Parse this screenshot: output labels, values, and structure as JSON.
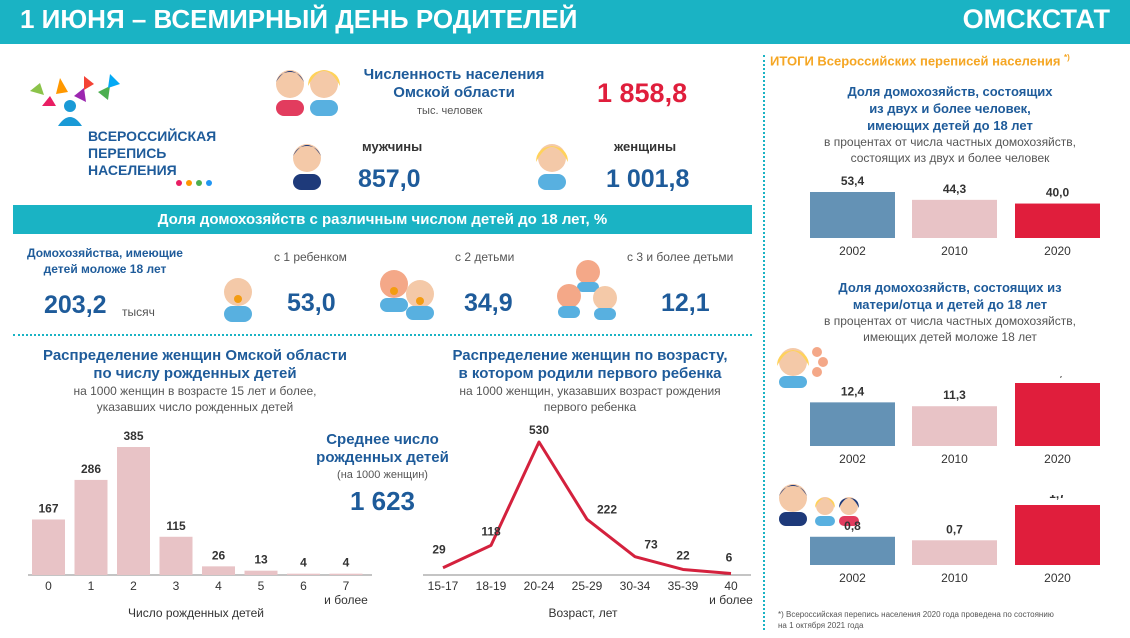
{
  "header": {
    "title": "1 ИЮНЯ – ВСЕМИРНЫЙ ДЕНЬ РОДИТЕЛЕЙ",
    "org": "ОМСКСТАТ"
  },
  "logo": {
    "line1": "ВСЕРОССИЙСКАЯ",
    "line2": "ПЕРЕПИСЬ",
    "line3": "НАСЕЛЕНИЯ"
  },
  "population": {
    "title_line1": "Численность населения",
    "title_line2": "Омской области",
    "unit": "тыс. человек",
    "total": "1 858,8",
    "men_label": "мужчины",
    "men_value": "857,0",
    "women_label": "женщины",
    "women_value": "1 001,8"
  },
  "households": {
    "band_title": "Доля домохозяйств с различным числом детей до 18 лет, %",
    "label_line1": "Домохозяйства, имеющие",
    "label_line2": "детей моложе 18 лет",
    "count": "203,2",
    "count_unit": "тысяч",
    "one_label": "с 1 ребенком",
    "one_value": "53,0",
    "two_label": "с 2 детьми",
    "two_value": "34,9",
    "three_label": "с 3 и более детьми",
    "three_value": "12,1"
  },
  "avg_children": {
    "line1": "Среднее число",
    "line2": "рожденных детей",
    "unit": "(на 1000 женщин)",
    "value": "1 623"
  },
  "right_panel": {
    "title": "ИТОГИ Всероссийских переписей населения",
    "title_mark": "*)",
    "footnote_line1": "*) Всероссийская перепись населения 2020 года проведена по состоянию",
    "footnote_line2": "на 1 октября 2021 года"
  },
  "colors": {
    "accent": "#1ab3c4",
    "blue_text": "#1e5b9a",
    "red": "#e01e3c",
    "pink": "#e8c3c6",
    "steel": "#6492b5"
  },
  "chart_data": [
    {
      "type": "bar",
      "title_line1": "Распределение женщин Омской области",
      "title_line2": "по числу рожденных детей",
      "subtitle_line1": "на 1000 женщин в возрасте 15 лет и более,",
      "subtitle_line2": "указавших число рожденных детей",
      "xlabel": "Число рожденных детей",
      "categories": [
        "0",
        "1",
        "2",
        "3",
        "4",
        "5",
        "6",
        "7 и более"
      ],
      "values": [
        167,
        286,
        385,
        115,
        26,
        13,
        4,
        4
      ],
      "value_labels": [
        "167",
        "286",
        "385",
        "115",
        "26",
        "13",
        "4",
        "4"
      ]
    },
    {
      "type": "line",
      "title_line1": "Распределение женщин по возрасту,",
      "title_line2": "в котором родили первого ребенка",
      "subtitle_line1": "на 1000 женщин, указавших возраст рождения",
      "subtitle_line2": "первого ребенка",
      "xlabel": "Возраст, лет",
      "categories": [
        "15-17",
        "18-19",
        "20-24",
        "25-29",
        "30-34",
        "35-39",
        "40 и более"
      ],
      "values": [
        29,
        118,
        530,
        222,
        73,
        22,
        6
      ],
      "value_labels": [
        "29",
        "118",
        "530",
        "222",
        "73",
        "22",
        "6"
      ]
    },
    {
      "type": "bar",
      "title_line1": "Доля домохозяйств, состоящих",
      "title_line2": "из двух и более человек,",
      "title_line3": "имеющих детей до 18 лет",
      "subtitle_line1": "в процентах от числа частных домохозяйств,",
      "subtitle_line2": "состоящих из двух и более человек",
      "categories": [
        "2002",
        "2010",
        "2020"
      ],
      "values": [
        53.4,
        44.3,
        40.0
      ],
      "value_labels": [
        "53,4",
        "44,3",
        "40,0"
      ]
    },
    {
      "type": "bar",
      "title_line1": "Доля домохозяйств, состоящих из",
      "title_line2": "матери/отца и детей до 18 лет",
      "subtitle_line1": "в процентах от числа частных домохозяйств,",
      "subtitle_line2": "имеющих детей моложе 18 лет",
      "categories": [
        "2002",
        "2010",
        "2020"
      ],
      "values": [
        12.4,
        11.3,
        17.9
      ],
      "value_labels": [
        "12,4",
        "11,3",
        "17,9"
      ]
    },
    {
      "type": "bar",
      "categories": [
        "2002",
        "2010",
        "2020"
      ],
      "values": [
        0.8,
        0.7,
        1.7
      ],
      "value_labels": [
        "0,8",
        "0,7",
        "1,7"
      ]
    }
  ]
}
